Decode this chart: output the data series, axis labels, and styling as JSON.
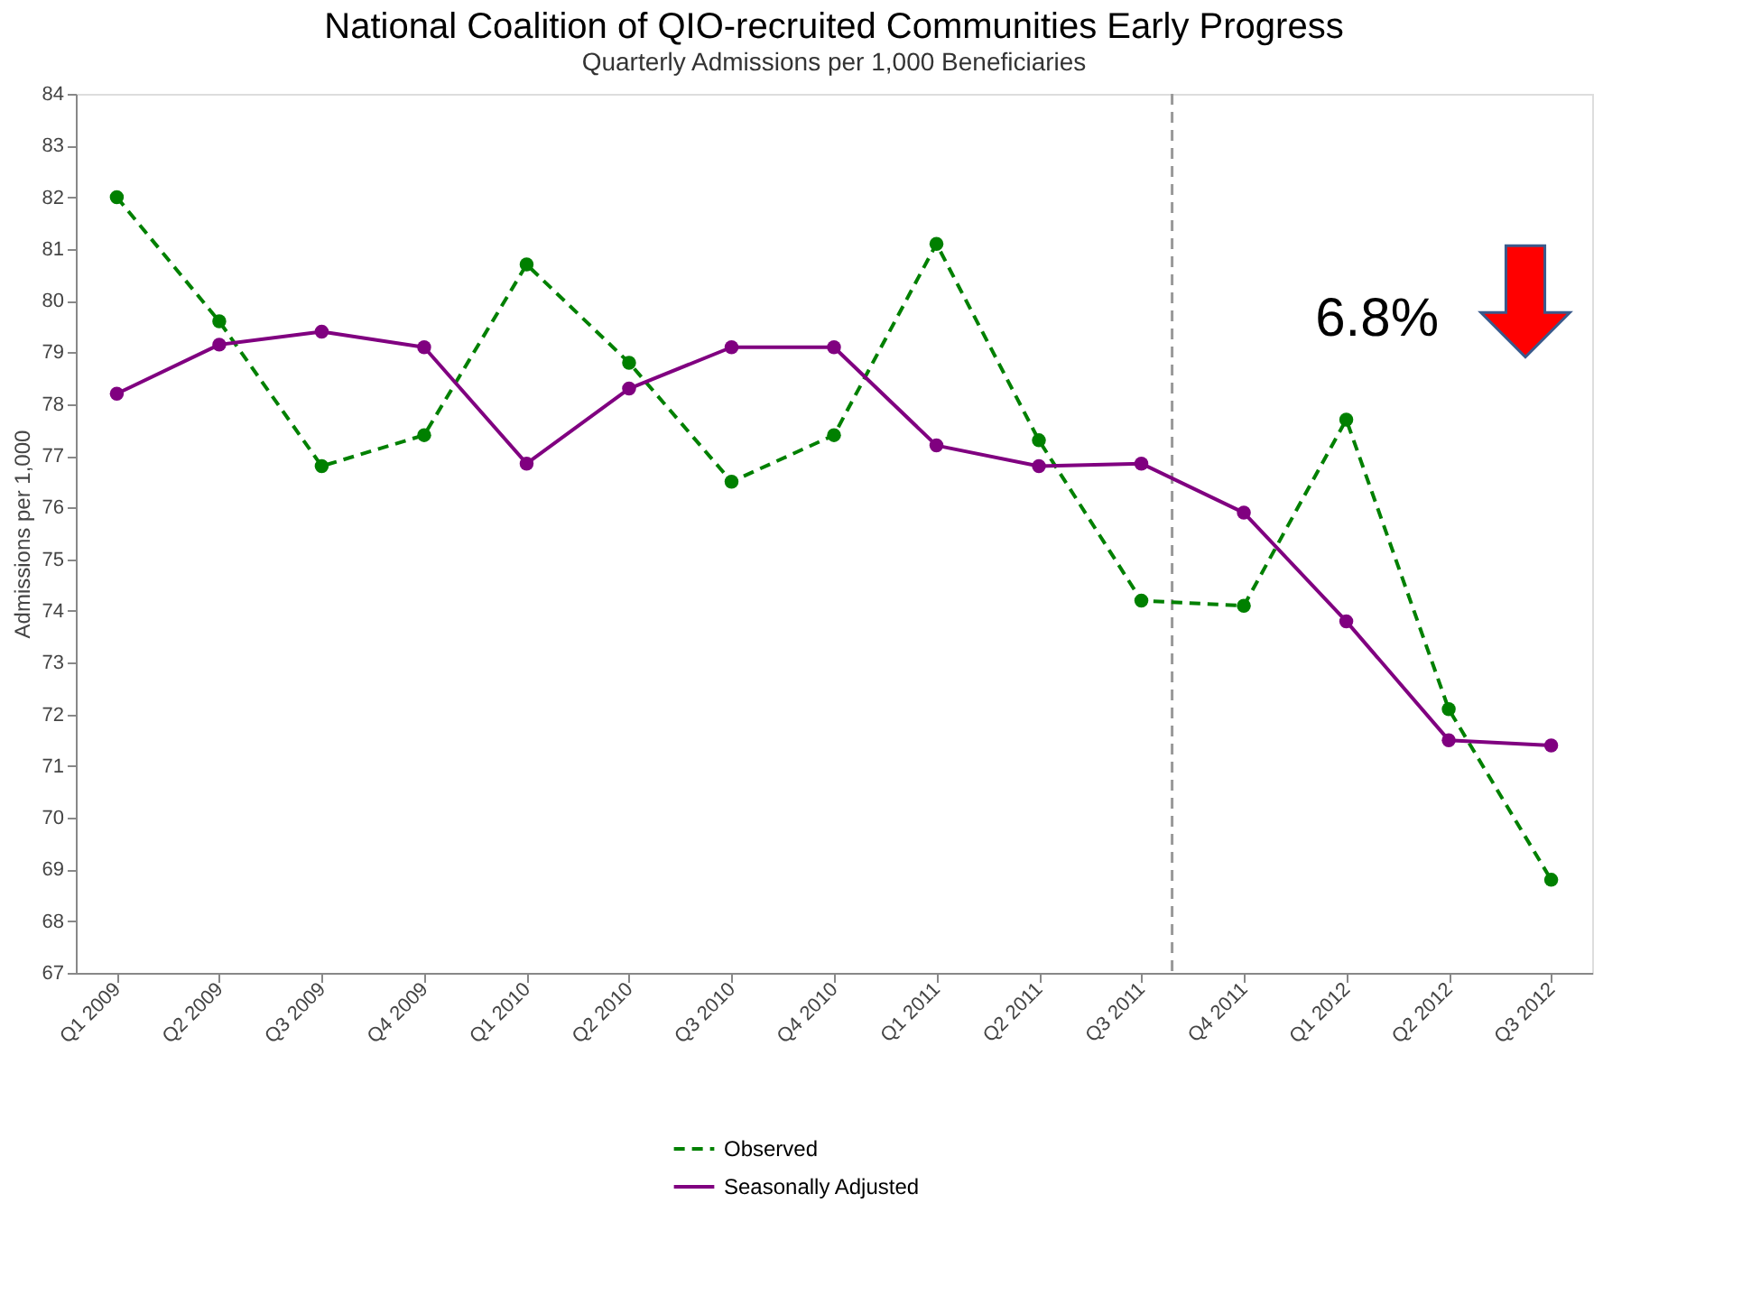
{
  "chart_data": {
    "type": "line",
    "title": "National Coalition of QIO-recruited Communities Early Progress",
    "subtitle": "Quarterly Admissions per 1,000 Beneficiaries",
    "ylabel": "Admissions per 1,000",
    "categories": [
      "Q1 2009",
      "Q2 2009",
      "Q3 2009",
      "Q4 2009",
      "Q1 2010",
      "Q2 2010",
      "Q3 2010",
      "Q4 2010",
      "Q1 2011",
      "Q2 2011",
      "Q3 2011",
      "Q4 2011",
      "Q1 2012",
      "Q2 2012",
      "Q3 2012"
    ],
    "series": [
      {
        "name": "Observed",
        "color": "#008000",
        "line_style": "dashed",
        "values": [
          82.0,
          79.6,
          76.8,
          77.4,
          80.7,
          78.8,
          76.5,
          77.4,
          81.1,
          77.3,
          74.2,
          74.1,
          77.7,
          72.1,
          68.8
        ]
      },
      {
        "name": "Seasonally Adjusted",
        "color": "#800080",
        "line_style": "solid",
        "values": [
          78.2,
          79.15,
          79.4,
          79.1,
          76.85,
          78.3,
          79.1,
          79.1,
          77.2,
          76.8,
          76.85,
          75.9,
          73.8,
          71.5,
          71.4
        ]
      }
    ],
    "ylim": [
      67,
      84
    ],
    "yticks": [
      67,
      68,
      69,
      70,
      71,
      72,
      73,
      74,
      75,
      76,
      77,
      78,
      79,
      80,
      81,
      82,
      83,
      84
    ],
    "ref_lines": [
      {
        "axis": "x",
        "value": "Q3 2011",
        "color": "#999999",
        "line_style": "dashed"
      }
    ],
    "annotations": [
      "6.8%"
    ],
    "marker": "circle",
    "grid": false,
    "legend": "bottom"
  }
}
